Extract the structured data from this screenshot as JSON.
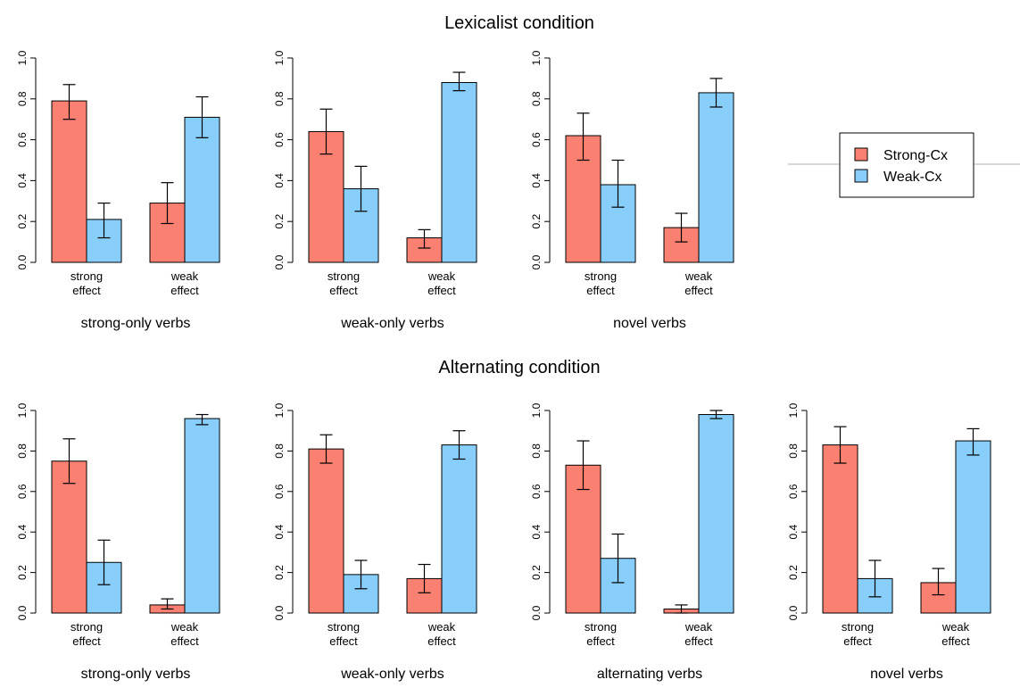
{
  "colors": {
    "strong": "#FA8072",
    "weak": "#87CEFA",
    "axis": "#000000"
  },
  "legend": {
    "items": [
      {
        "label": "Strong-Cx",
        "color": "#FA8072"
      },
      {
        "label": "Weak-Cx",
        "color": "#87CEFA"
      }
    ]
  },
  "chart_data": [
    {
      "section": "Lexicalist condition",
      "type": "bar",
      "xlabel": "strong-only verbs",
      "categories": [
        "strong effect",
        "weak effect"
      ],
      "ylim": [
        0,
        1
      ],
      "yticks": [
        "0.0",
        "0.2",
        "0.4",
        "0.6",
        "0.8",
        "1.0"
      ],
      "series": [
        {
          "name": "Strong-Cx",
          "values": [
            0.79,
            0.29
          ],
          "ci_low": [
            0.7,
            0.19
          ],
          "ci_high": [
            0.87,
            0.39
          ]
        },
        {
          "name": "Weak-Cx",
          "values": [
            0.21,
            0.71
          ],
          "ci_low": [
            0.12,
            0.61
          ],
          "ci_high": [
            0.29,
            0.81
          ]
        }
      ]
    },
    {
      "section": "Lexicalist condition",
      "type": "bar",
      "xlabel": "weak-only verbs",
      "categories": [
        "strong effect",
        "weak effect"
      ],
      "ylim": [
        0,
        1
      ],
      "yticks": [
        "0.0",
        "0.2",
        "0.4",
        "0.6",
        "0.8",
        "1.0"
      ],
      "series": [
        {
          "name": "Strong-Cx",
          "values": [
            0.64,
            0.12
          ],
          "ci_low": [
            0.53,
            0.07
          ],
          "ci_high": [
            0.75,
            0.16
          ]
        },
        {
          "name": "Weak-Cx",
          "values": [
            0.36,
            0.88
          ],
          "ci_low": [
            0.25,
            0.84
          ],
          "ci_high": [
            0.47,
            0.93
          ]
        }
      ]
    },
    {
      "section": "Lexicalist condition",
      "type": "bar",
      "xlabel": "novel verbs",
      "categories": [
        "strong effect",
        "weak effect"
      ],
      "ylim": [
        0,
        1
      ],
      "yticks": [
        "0.0",
        "0.2",
        "0.4",
        "0.6",
        "0.8",
        "1.0"
      ],
      "series": [
        {
          "name": "Strong-Cx",
          "values": [
            0.62,
            0.17
          ],
          "ci_low": [
            0.5,
            0.1
          ],
          "ci_high": [
            0.73,
            0.24
          ]
        },
        {
          "name": "Weak-Cx",
          "values": [
            0.38,
            0.83
          ],
          "ci_low": [
            0.27,
            0.76
          ],
          "ci_high": [
            0.5,
            0.9
          ]
        }
      ]
    },
    {
      "section": "Alternating condition",
      "type": "bar",
      "xlabel": "strong-only verbs",
      "categories": [
        "strong effect",
        "weak effect"
      ],
      "ylim": [
        0,
        1
      ],
      "yticks": [
        "0.0",
        "0.2",
        "0.4",
        "0.6",
        "0.8",
        "1.0"
      ],
      "series": [
        {
          "name": "Strong-Cx",
          "values": [
            0.75,
            0.04
          ],
          "ci_low": [
            0.64,
            0.02
          ],
          "ci_high": [
            0.86,
            0.07
          ]
        },
        {
          "name": "Weak-Cx",
          "values": [
            0.25,
            0.96
          ],
          "ci_low": [
            0.14,
            0.93
          ],
          "ci_high": [
            0.36,
            0.98
          ]
        }
      ]
    },
    {
      "section": "Alternating condition",
      "type": "bar",
      "xlabel": "weak-only verbs",
      "categories": [
        "strong effect",
        "weak effect"
      ],
      "ylim": [
        0,
        1
      ],
      "yticks": [
        "0.0",
        "0.2",
        "0.4",
        "0.6",
        "0.8",
        "1.0"
      ],
      "series": [
        {
          "name": "Strong-Cx",
          "values": [
            0.81,
            0.17
          ],
          "ci_low": [
            0.74,
            0.1
          ],
          "ci_high": [
            0.88,
            0.24
          ]
        },
        {
          "name": "Weak-Cx",
          "values": [
            0.19,
            0.83
          ],
          "ci_low": [
            0.12,
            0.76
          ],
          "ci_high": [
            0.26,
            0.9
          ]
        }
      ]
    },
    {
      "section": "Alternating condition",
      "type": "bar",
      "xlabel": "alternating verbs",
      "categories": [
        "strong effect",
        "weak effect"
      ],
      "ylim": [
        0,
        1
      ],
      "yticks": [
        "0.0",
        "0.2",
        "0.4",
        "0.6",
        "0.8",
        "1.0"
      ],
      "series": [
        {
          "name": "Strong-Cx",
          "values": [
            0.73,
            0.02
          ],
          "ci_low": [
            0.61,
            0.0
          ],
          "ci_high": [
            0.85,
            0.04
          ]
        },
        {
          "name": "Weak-Cx",
          "values": [
            0.27,
            0.98
          ],
          "ci_low": [
            0.15,
            0.96
          ],
          "ci_high": [
            0.39,
            1.0
          ]
        }
      ]
    },
    {
      "section": "Alternating condition",
      "type": "bar",
      "xlabel": "novel verbs",
      "categories": [
        "strong effect",
        "weak effect"
      ],
      "ylim": [
        0,
        1
      ],
      "yticks": [
        "0.0",
        "0.2",
        "0.4",
        "0.6",
        "0.8",
        "1.0"
      ],
      "series": [
        {
          "name": "Strong-Cx",
          "values": [
            0.83,
            0.15
          ],
          "ci_low": [
            0.74,
            0.09
          ],
          "ci_high": [
            0.92,
            0.22
          ]
        },
        {
          "name": "Weak-Cx",
          "values": [
            0.17,
            0.85
          ],
          "ci_low": [
            0.08,
            0.78
          ],
          "ci_high": [
            0.26,
            0.91
          ]
        }
      ]
    }
  ]
}
